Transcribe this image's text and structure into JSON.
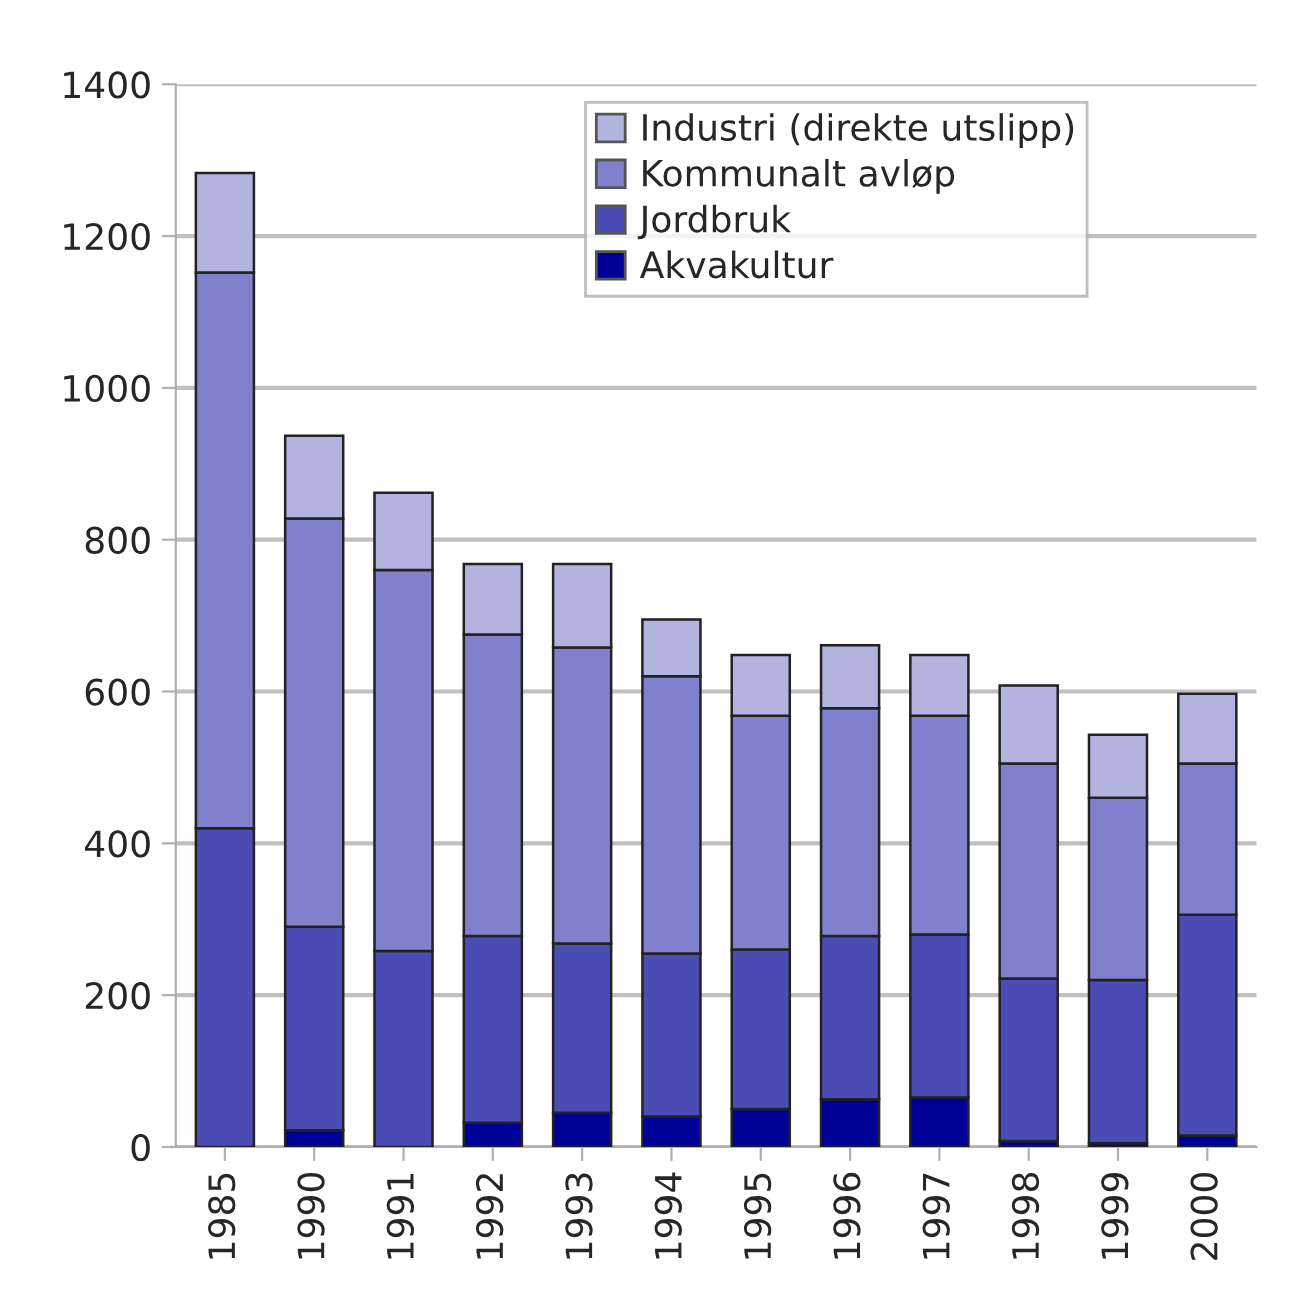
{
  "chart_data": {
    "type": "bar",
    "stacked": true,
    "categories": [
      "1985",
      "1990",
      "1991",
      "1992",
      "1993",
      "1994",
      "1995",
      "1996",
      "1997",
      "1998",
      "1999",
      "2000"
    ],
    "series": [
      {
        "name": "Akvakultur",
        "color": "#000099",
        "values": [
          0,
          22,
          0,
          32,
          45,
          40,
          50,
          63,
          65,
          8,
          5,
          15
        ]
      },
      {
        "name": "Jordbruk",
        "color": "#4b4db4",
        "values": [
          420,
          268,
          258,
          246,
          223,
          215,
          210,
          215,
          215,
          214,
          215,
          291
        ]
      },
      {
        "name": "Kommunalt avløp",
        "color": "#8080cc",
        "values": [
          732,
          538,
          502,
          397,
          390,
          365,
          308,
          300,
          288,
          283,
          240,
          199
        ]
      },
      {
        "name": "Industri (direkte utslipp)",
        "color": "#b3b3e0",
        "values": [
          131,
          109,
          102,
          93,
          110,
          75,
          80,
          83,
          80,
          103,
          83,
          92
        ]
      }
    ],
    "ylim": [
      0,
      1400
    ],
    "yticks": [
      0,
      200,
      400,
      600,
      800,
      1000,
      1200,
      1400
    ],
    "grid": "y",
    "legend": "top right"
  }
}
